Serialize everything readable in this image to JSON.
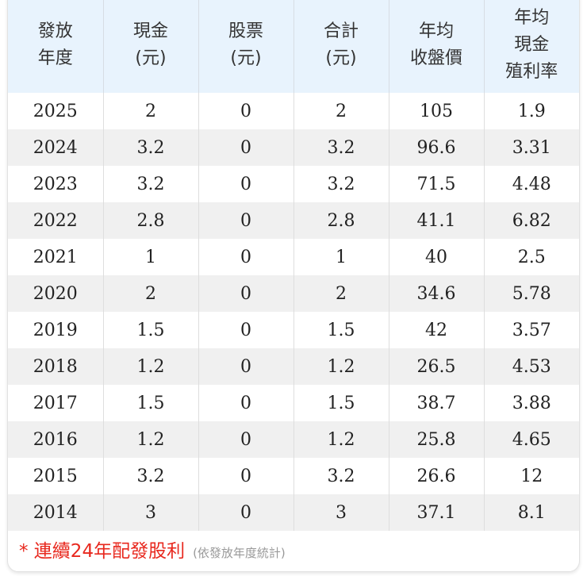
{
  "table": {
    "headers": [
      {
        "lines": [
          "發放",
          "年度"
        ]
      },
      {
        "lines": [
          "現金",
          "(元)"
        ]
      },
      {
        "lines": [
          "股票",
          "(元)"
        ]
      },
      {
        "lines": [
          "合計",
          "(元)"
        ]
      },
      {
        "lines": [
          "年均",
          "收盤價"
        ]
      },
      {
        "lines": [
          "年均",
          "現金",
          "殖利率"
        ]
      }
    ],
    "rows": [
      [
        "2025",
        "2",
        "0",
        "2",
        "105",
        "1.9"
      ],
      [
        "2024",
        "3.2",
        "0",
        "3.2",
        "96.6",
        "3.31"
      ],
      [
        "2023",
        "3.2",
        "0",
        "3.2",
        "71.5",
        "4.48"
      ],
      [
        "2022",
        "2.8",
        "0",
        "2.8",
        "41.1",
        "6.82"
      ],
      [
        "2021",
        "1",
        "0",
        "1",
        "40",
        "2.5"
      ],
      [
        "2020",
        "2",
        "0",
        "2",
        "34.6",
        "5.78"
      ],
      [
        "2019",
        "1.5",
        "0",
        "1.5",
        "42",
        "3.57"
      ],
      [
        "2018",
        "1.2",
        "0",
        "1.2",
        "26.5",
        "4.53"
      ],
      [
        "2017",
        "1.5",
        "0",
        "1.5",
        "38.7",
        "3.88"
      ],
      [
        "2016",
        "1.2",
        "0",
        "1.2",
        "25.8",
        "4.65"
      ],
      [
        "2015",
        "3.2",
        "0",
        "3.2",
        "26.6",
        "12"
      ],
      [
        "2014",
        "3",
        "0",
        "3",
        "37.1",
        "8.1"
      ]
    ]
  },
  "footer": {
    "note": "* 連續24年配發股利",
    "sub": "(依發放年度統計)"
  },
  "colors": {
    "header_bg": "#e8f3fd",
    "alt_row_bg": "#f0f0f0",
    "note_red": "#e8281e"
  }
}
